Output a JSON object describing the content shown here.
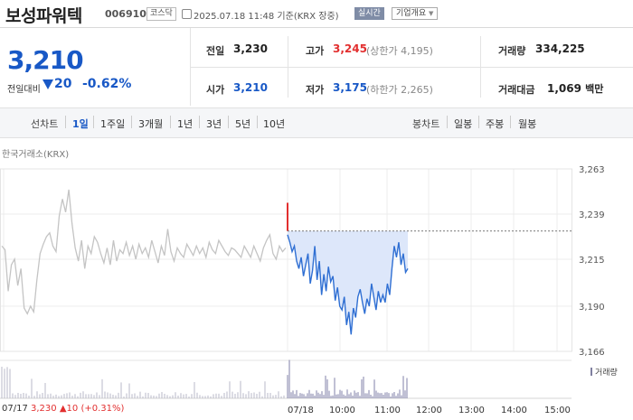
{
  "header": {
    "name": "보성파워텍",
    "code": "006910",
    "market": "코스닥",
    "time": "2025.07.18 11:48 기준(KRX 장중)",
    "realtime_btn": "실시간",
    "company_btn": "기업개요"
  },
  "price": {
    "current": "3,210",
    "change_label": "전일대비",
    "change_value": "20",
    "change_pct": "-0.62%",
    "direction_color": "#1858c6"
  },
  "quotes": {
    "prev_label": "전일",
    "prev_val": "3,230",
    "high_label": "고가",
    "high_val": "3,245",
    "high_sub": "(상한가 4,195)",
    "volume_label": "거래량",
    "volume_val": "334,225",
    "open_label": "시가",
    "open_val": "3,210",
    "low_label": "저가",
    "low_val": "3,175",
    "low_sub": "(하한가 2,265)",
    "amount_label": "거래대금",
    "amount_val": "1,069",
    "amount_unit": "백만"
  },
  "period_bar": {
    "line_chart_label": "선차트",
    "tabs": [
      "1일",
      "1주일",
      "3개월",
      "1년",
      "3년",
      "5년",
      "10년"
    ],
    "active_tab": "1일",
    "candle_label": "봉차트",
    "candle_tabs": [
      "일봉",
      "주봉",
      "월봉"
    ]
  },
  "chart": {
    "exchange_label": "한국거래소(KRX)",
    "volume_label": "거래량",
    "bottom_date": "07/17",
    "bottom_price": "3,230",
    "bottom_change": "▲10",
    "bottom_pct": "(+0.31%)"
  },
  "chart_data": {
    "type": "line",
    "y_ticks": [
      "3,263",
      "3,239",
      "3,215",
      "3,190",
      "3,166"
    ],
    "y_tick_values": [
      3263,
      3239,
      3215,
      3190,
      3166
    ],
    "x_labels": [
      "07/17",
      "07/18",
      "10:00",
      "11:00",
      "12:00",
      "13:00",
      "14:00",
      "15:00"
    ],
    "ylim": [
      3166,
      3263
    ],
    "prev_close": 3230,
    "series": [
      {
        "values_prev_day": [
          3222,
          3220,
          3198,
          3212,
          3215,
          3201,
          3210,
          3189,
          3186,
          3190,
          3187,
          3204,
          3218,
          3223,
          3227,
          3229,
          3222,
          3219,
          3238,
          3247,
          3240,
          3252,
          3234,
          3221,
          3214,
          3225,
          3210,
          3222,
          3218,
          3227,
          3224,
          3218,
          3213,
          3221,
          3212,
          3225,
          3214,
          3220,
          3218,
          3224,
          3217,
          3222,
          3215,
          3223,
          3218,
          3221,
          3216,
          3225,
          3219,
          3213,
          3222,
          3217,
          3231,
          3219,
          3214,
          3221,
          3218,
          3216,
          3223,
          3220,
          3217,
          3222,
          3218,
          3221,
          3216,
          3224,
          3220,
          3218,
          3225,
          3222,
          3219,
          3217,
          3221,
          3220,
          3218,
          3216,
          3222,
          3219,
          3216,
          3222,
          3218,
          3214,
          3221,
          3225,
          3228,
          3218,
          3215,
          3222,
          3219,
          3221
        ],
        "values_today": [
          3228,
          3224,
          3219,
          3222,
          3214,
          3210,
          3216,
          3206,
          3212,
          3218,
          3202,
          3209,
          3222,
          3204,
          3214,
          3196,
          3207,
          3198,
          3211,
          3203,
          3206,
          3193,
          3200,
          3190,
          3188,
          3195,
          3180,
          3187,
          3175,
          3189,
          3184,
          3195,
          3199,
          3192,
          3186,
          3194,
          3190,
          3202,
          3195,
          3188,
          3198,
          3192,
          3196,
          3192,
          3202,
          3196,
          3210,
          3222,
          3216,
          3224,
          3212,
          3218,
          3208,
          3210
        ]
      }
    ]
  }
}
